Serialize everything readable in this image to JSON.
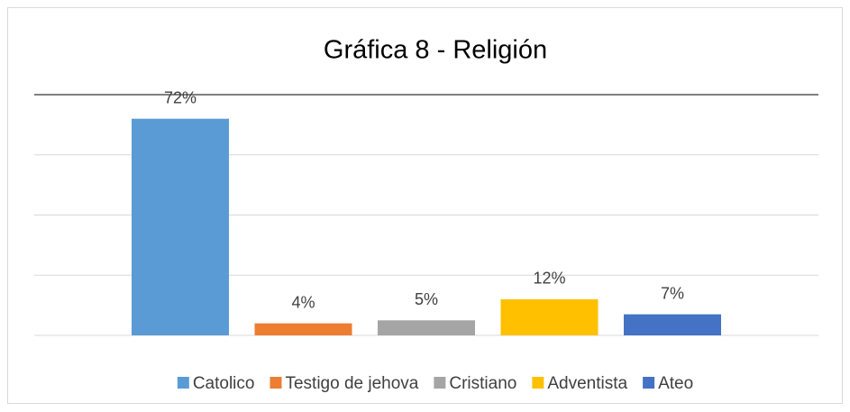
{
  "chart_data": {
    "type": "bar",
    "title": "Gráfica 8 - Religión",
    "categories": [
      null
    ],
    "series": [
      {
        "name": "Catolico",
        "color": "#5b9bd5",
        "values": [
          72
        ],
        "value_labels": [
          "72%"
        ]
      },
      {
        "name": "Testigo de jehova",
        "color": "#ed7d31",
        "values": [
          4
        ],
        "value_labels": [
          "4%"
        ]
      },
      {
        "name": "Cristiano",
        "color": "#a5a5a5",
        "values": [
          5
        ],
        "value_labels": [
          "5%"
        ]
      },
      {
        "name": "Adventista",
        "color": "#ffc000",
        "values": [
          12
        ],
        "value_labels": [
          "12%"
        ]
      },
      {
        "name": "Ateo",
        "color": "#4472c4",
        "values": [
          7
        ],
        "value_labels": [
          "7%"
        ]
      }
    ],
    "ylim": [
      0,
      80
    ],
    "yticks": [
      0,
      20,
      40,
      60,
      80
    ],
    "grid": true,
    "legend": "bottom"
  }
}
